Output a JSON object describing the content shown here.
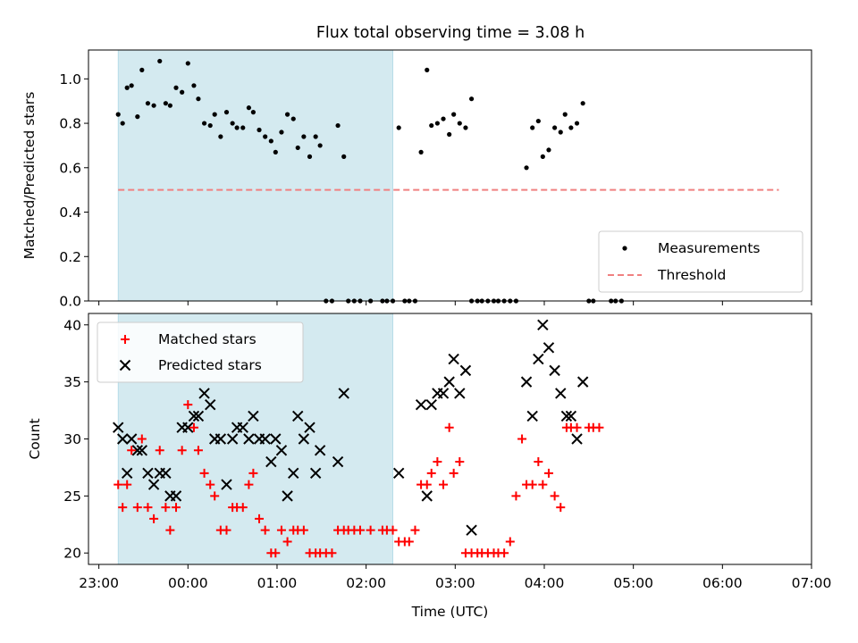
{
  "title": "Flux total observing time = 3.08 h",
  "colors": {
    "shade": "#d4eaf0",
    "threshold": "#f08080",
    "matched": "#ff0000",
    "predicted": "#000000",
    "measurement": "#000000"
  },
  "chart_data": [
    {
      "type": "scatter",
      "ylabel": "Matched/Predicted stars",
      "ylim": [
        0,
        1.13
      ],
      "yticks": [
        "0.0",
        "0.2",
        "0.4",
        "0.6",
        "0.8",
        "1.0"
      ],
      "xlim": [
        "22:53",
        "07:00"
      ],
      "shaded_interval": [
        "23:13",
        "02:18"
      ],
      "threshold": 0.5,
      "threshold_x_range": [
        "23:13",
        "06:38"
      ],
      "legend": {
        "placement": "lower right",
        "entries": [
          {
            "label": "Measurements",
            "marker": "dot"
          },
          {
            "label": "Threshold",
            "marker": "dashed-line"
          }
        ]
      },
      "series": [
        {
          "name": "Measurements",
          "points": [
            [
              "23:13",
              0.84
            ],
            [
              "23:16",
              0.8
            ],
            [
              "23:19",
              0.96
            ],
            [
              "23:22",
              0.97
            ],
            [
              "23:26",
              0.83
            ],
            [
              "23:29",
              1.04
            ],
            [
              "23:33",
              0.89
            ],
            [
              "23:37",
              0.88
            ],
            [
              "23:41",
              1.08
            ],
            [
              "23:45",
              0.89
            ],
            [
              "23:48",
              0.88
            ],
            [
              "23:52",
              0.96
            ],
            [
              "23:56",
              0.94
            ],
            [
              "00:00",
              1.07
            ],
            [
              "00:04",
              0.97
            ],
            [
              "00:07",
              0.91
            ],
            [
              "00:11",
              0.8
            ],
            [
              "00:15",
              0.79
            ],
            [
              "00:18",
              0.84
            ],
            [
              "00:22",
              0.74
            ],
            [
              "00:26",
              0.85
            ],
            [
              "00:30",
              0.8
            ],
            [
              "00:33",
              0.78
            ],
            [
              "00:37",
              0.78
            ],
            [
              "00:41",
              0.87
            ],
            [
              "00:44",
              0.85
            ],
            [
              "00:48",
              0.77
            ],
            [
              "00:52",
              0.74
            ],
            [
              "00:56",
              0.72
            ],
            [
              "00:59",
              0.67
            ],
            [
              "01:03",
              0.76
            ],
            [
              "01:07",
              0.84
            ],
            [
              "01:11",
              0.82
            ],
            [
              "01:14",
              0.69
            ],
            [
              "01:18",
              0.74
            ],
            [
              "01:22",
              0.65
            ],
            [
              "01:26",
              0.74
            ],
            [
              "01:29",
              0.7
            ],
            [
              "01:33",
              0
            ],
            [
              "01:37",
              0
            ],
            [
              "01:41",
              0.79
            ],
            [
              "01:45",
              0.65
            ],
            [
              "01:48",
              0
            ],
            [
              "01:52",
              0
            ],
            [
              "01:56",
              0
            ],
            [
              "02:03",
              0
            ],
            [
              "02:11",
              0
            ],
            [
              "02:14",
              0
            ],
            [
              "02:18",
              0
            ],
            [
              "02:22",
              0.78
            ],
            [
              "02:26",
              0
            ],
            [
              "02:29",
              0
            ],
            [
              "02:33",
              0
            ],
            [
              "02:37",
              0.67
            ],
            [
              "02:41",
              1.04
            ],
            [
              "02:44",
              0.79
            ],
            [
              "02:48",
              0.8
            ],
            [
              "02:52",
              0.82
            ],
            [
              "02:56",
              0.75
            ],
            [
              "02:59",
              0.84
            ],
            [
              "03:03",
              0.8
            ],
            [
              "03:07",
              0.78
            ],
            [
              "03:11",
              0.91
            ],
            [
              "03:11",
              0
            ],
            [
              "03:15",
              0
            ],
            [
              "03:18",
              0
            ],
            [
              "03:22",
              0
            ],
            [
              "03:26",
              0
            ],
            [
              "03:29",
              0
            ],
            [
              "03:33",
              0
            ],
            [
              "03:37",
              0
            ],
            [
              "03:41",
              0
            ],
            [
              "03:48",
              0.6
            ],
            [
              "03:52",
              0.78
            ],
            [
              "03:56",
              0.81
            ],
            [
              "03:59",
              0.65
            ],
            [
              "04:03",
              0.68
            ],
            [
              "04:07",
              0.78
            ],
            [
              "04:11",
              0.76
            ],
            [
              "04:14",
              0.84
            ],
            [
              "04:18",
              0.78
            ],
            [
              "04:22",
              0.8
            ],
            [
              "04:26",
              0.89
            ],
            [
              "04:30",
              0
            ],
            [
              "04:33",
              0
            ],
            [
              "04:45",
              0
            ],
            [
              "04:48",
              0
            ],
            [
              "04:52",
              0
            ]
          ]
        }
      ]
    },
    {
      "type": "scatter",
      "ylabel": "Count",
      "xlabel": "Time (UTC)",
      "ylim": [
        19,
        41
      ],
      "yticks": [
        "20",
        "25",
        "30",
        "35",
        "40"
      ],
      "xlim": [
        "22:53",
        "07:00"
      ],
      "xticks": [
        "23:00",
        "00:00",
        "01:00",
        "02:00",
        "03:00",
        "04:00",
        "05:00",
        "06:00",
        "07:00"
      ],
      "shaded_interval": [
        "23:13",
        "02:18"
      ],
      "legend": {
        "placement": "upper left",
        "entries": [
          {
            "label": "Matched stars",
            "marker": "plus"
          },
          {
            "label": "Predicted stars",
            "marker": "x"
          }
        ]
      },
      "series": [
        {
          "name": "Matched stars",
          "points": [
            [
              "23:13",
              26
            ],
            [
              "23:16",
              24
            ],
            [
              "23:19",
              26
            ],
            [
              "23:22",
              29
            ],
            [
              "23:26",
              24
            ],
            [
              "23:29",
              30
            ],
            [
              "23:33",
              24
            ],
            [
              "23:37",
              23
            ],
            [
              "23:41",
              29
            ],
            [
              "23:45",
              24
            ],
            [
              "23:48",
              22
            ],
            [
              "23:52",
              24
            ],
            [
              "23:56",
              29
            ],
            [
              "00:00",
              33
            ],
            [
              "00:04",
              31
            ],
            [
              "00:07",
              29
            ],
            [
              "00:11",
              27
            ],
            [
              "00:15",
              26
            ],
            [
              "00:18",
              25
            ],
            [
              "00:22",
              22
            ],
            [
              "00:26",
              22
            ],
            [
              "00:30",
              24
            ],
            [
              "00:33",
              24
            ],
            [
              "00:37",
              24
            ],
            [
              "00:41",
              26
            ],
            [
              "00:44",
              27
            ],
            [
              "00:48",
              23
            ],
            [
              "00:52",
              22
            ],
            [
              "00:56",
              20
            ],
            [
              "00:59",
              20
            ],
            [
              "01:03",
              22
            ],
            [
              "01:07",
              21
            ],
            [
              "01:11",
              22
            ],
            [
              "01:14",
              22
            ],
            [
              "01:18",
              22
            ],
            [
              "01:22",
              20
            ],
            [
              "01:26",
              20
            ],
            [
              "01:29",
              20
            ],
            [
              "01:33",
              20
            ],
            [
              "01:37",
              20
            ],
            [
              "01:41",
              22
            ],
            [
              "01:45",
              22
            ],
            [
              "01:48",
              22
            ],
            [
              "01:52",
              22
            ],
            [
              "01:56",
              22
            ],
            [
              "02:03",
              22
            ],
            [
              "02:11",
              22
            ],
            [
              "02:14",
              22
            ],
            [
              "02:18",
              22
            ],
            [
              "02:22",
              21
            ],
            [
              "02:26",
              21
            ],
            [
              "02:29",
              21
            ],
            [
              "02:33",
              22
            ],
            [
              "02:37",
              26
            ],
            [
              "02:41",
              26
            ],
            [
              "02:44",
              27
            ],
            [
              "02:48",
              28
            ],
            [
              "02:52",
              26
            ],
            [
              "02:56",
              31
            ],
            [
              "02:59",
              27
            ],
            [
              "03:03",
              28
            ],
            [
              "03:07",
              20
            ],
            [
              "03:11",
              20
            ],
            [
              "03:15",
              20
            ],
            [
              "03:18",
              20
            ],
            [
              "03:22",
              20
            ],
            [
              "03:26",
              20
            ],
            [
              "03:29",
              20
            ],
            [
              "03:33",
              20
            ],
            [
              "03:37",
              21
            ],
            [
              "03:41",
              25
            ],
            [
              "03:45",
              30
            ],
            [
              "03:48",
              26
            ],
            [
              "03:52",
              26
            ],
            [
              "03:56",
              28
            ],
            [
              "03:59",
              26
            ],
            [
              "04:03",
              27
            ],
            [
              "04:07",
              25
            ],
            [
              "04:11",
              24
            ],
            [
              "04:15",
              31
            ],
            [
              "04:18",
              31
            ],
            [
              "04:22",
              31
            ],
            [
              "04:30",
              31
            ],
            [
              "04:33",
              31
            ],
            [
              "04:37",
              31
            ]
          ]
        },
        {
          "name": "Predicted stars",
          "points": [
            [
              "23:13",
              31
            ],
            [
              "23:16",
              30
            ],
            [
              "23:19",
              27
            ],
            [
              "23:22",
              30
            ],
            [
              "23:26",
              29
            ],
            [
              "23:29",
              29
            ],
            [
              "23:33",
              27
            ],
            [
              "23:37",
              26
            ],
            [
              "23:41",
              27
            ],
            [
              "23:45",
              27
            ],
            [
              "23:48",
              25
            ],
            [
              "23:52",
              25
            ],
            [
              "23:56",
              31
            ],
            [
              "00:00",
              31
            ],
            [
              "00:04",
              32
            ],
            [
              "00:07",
              32
            ],
            [
              "00:11",
              34
            ],
            [
              "00:15",
              33
            ],
            [
              "00:18",
              30
            ],
            [
              "00:22",
              30
            ],
            [
              "00:26",
              26
            ],
            [
              "00:30",
              30
            ],
            [
              "00:33",
              31
            ],
            [
              "00:37",
              31
            ],
            [
              "00:41",
              30
            ],
            [
              "00:44",
              32
            ],
            [
              "00:48",
              30
            ],
            [
              "00:52",
              30
            ],
            [
              "00:56",
              28
            ],
            [
              "00:59",
              30
            ],
            [
              "01:03",
              29
            ],
            [
              "01:07",
              25
            ],
            [
              "01:11",
              27
            ],
            [
              "01:14",
              32
            ],
            [
              "01:18",
              30
            ],
            [
              "01:22",
              31
            ],
            [
              "01:26",
              27
            ],
            [
              "01:29",
              29
            ],
            [
              "01:41",
              28
            ],
            [
              "01:45",
              34
            ],
            [
              "02:22",
              27
            ],
            [
              "02:37",
              33
            ],
            [
              "02:41",
              25
            ],
            [
              "02:44",
              33
            ],
            [
              "02:48",
              34
            ],
            [
              "02:52",
              34
            ],
            [
              "02:56",
              35
            ],
            [
              "02:59",
              37
            ],
            [
              "03:03",
              34
            ],
            [
              "03:07",
              36
            ],
            [
              "03:11",
              22
            ],
            [
              "03:48",
              35
            ],
            [
              "03:52",
              32
            ],
            [
              "03:56",
              37
            ],
            [
              "03:59",
              40
            ],
            [
              "04:03",
              38
            ],
            [
              "04:07",
              36
            ],
            [
              "04:11",
              34
            ],
            [
              "04:15",
              32
            ],
            [
              "04:18",
              32
            ],
            [
              "04:22",
              30
            ],
            [
              "04:26",
              35
            ]
          ]
        }
      ]
    }
  ]
}
